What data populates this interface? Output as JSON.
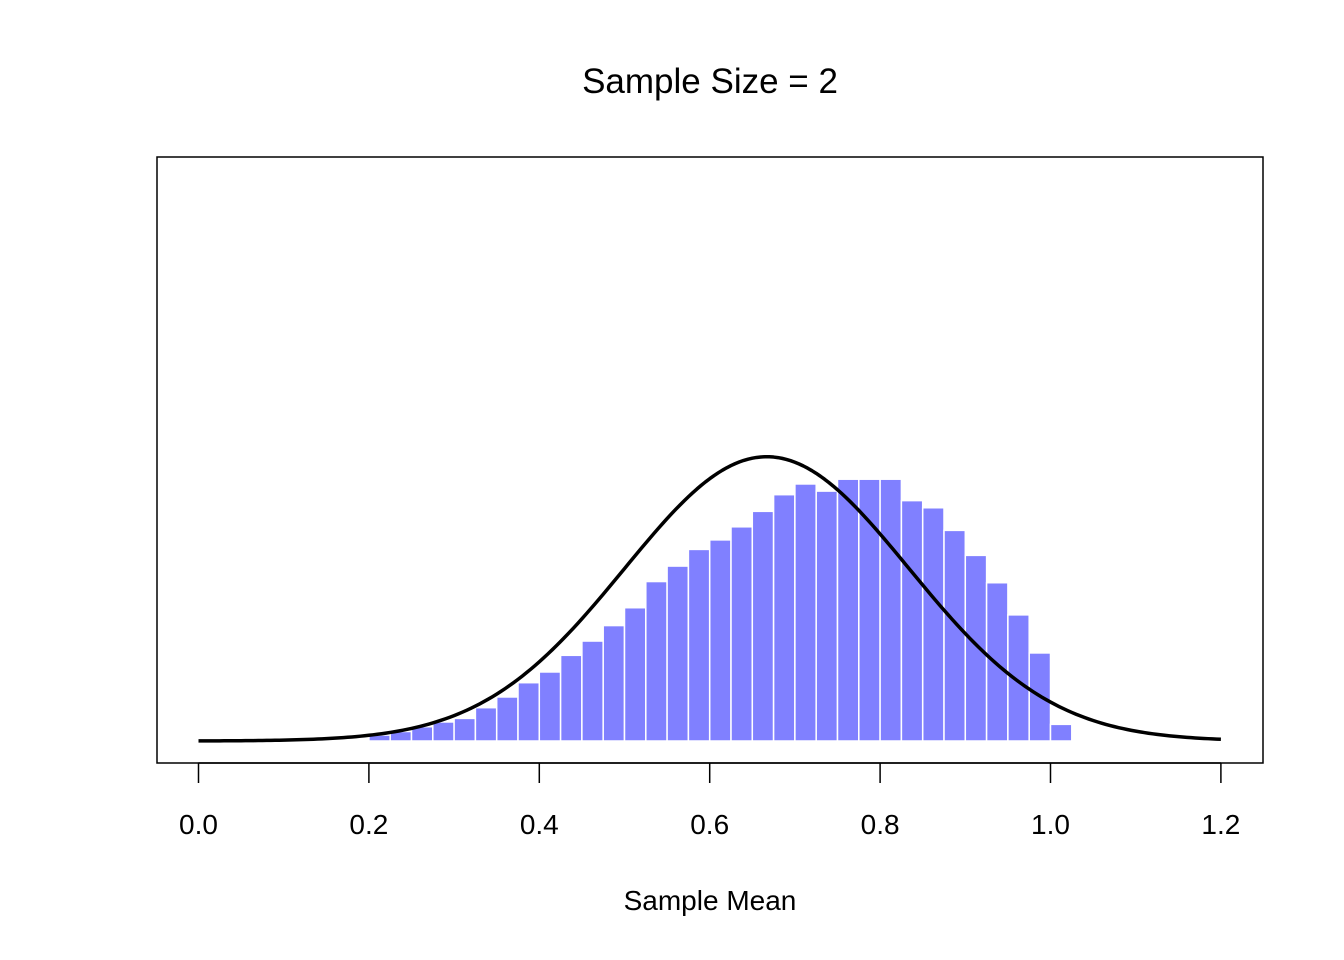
{
  "chart_data": {
    "type": "bar",
    "title": "Sample Size = 2",
    "xlabel": "Sample Mean",
    "ylabel": "",
    "xlim": [
      -0.05,
      1.25
    ],
    "ylim": [
      -0.1,
      4.4
    ],
    "x_ticks": [
      "0.0",
      "0.2",
      "0.4",
      "0.6",
      "0.8",
      "1.0",
      "1.2"
    ],
    "y_axis_shown": false,
    "grid": false,
    "legend": "none",
    "bar_color": "#8080ff",
    "bar_edge_color": "#ffffff",
    "curve_color": "#000000",
    "bins": {
      "start": 0.0,
      "width": 0.025,
      "values": [
        0,
        0,
        0,
        0,
        0,
        0,
        0,
        0.01,
        0.05,
        0.08,
        0.12,
        0.16,
        0.19,
        0.28,
        0.37,
        0.49,
        0.58,
        0.72,
        0.84,
        0.97,
        1.12,
        1.34,
        1.47,
        1.61,
        1.69,
        1.8,
        1.93,
        2.07,
        2.16,
        2.1,
        2.2,
        2.2,
        2.2,
        2.02,
        1.96,
        1.77,
        1.56,
        1.33,
        1.06,
        0.74,
        0.14
      ]
    },
    "curve": {
      "label": "normal density",
      "mean": 0.667,
      "sd": 0.167,
      "x_range": [
        0.0,
        1.2
      ]
    }
  }
}
